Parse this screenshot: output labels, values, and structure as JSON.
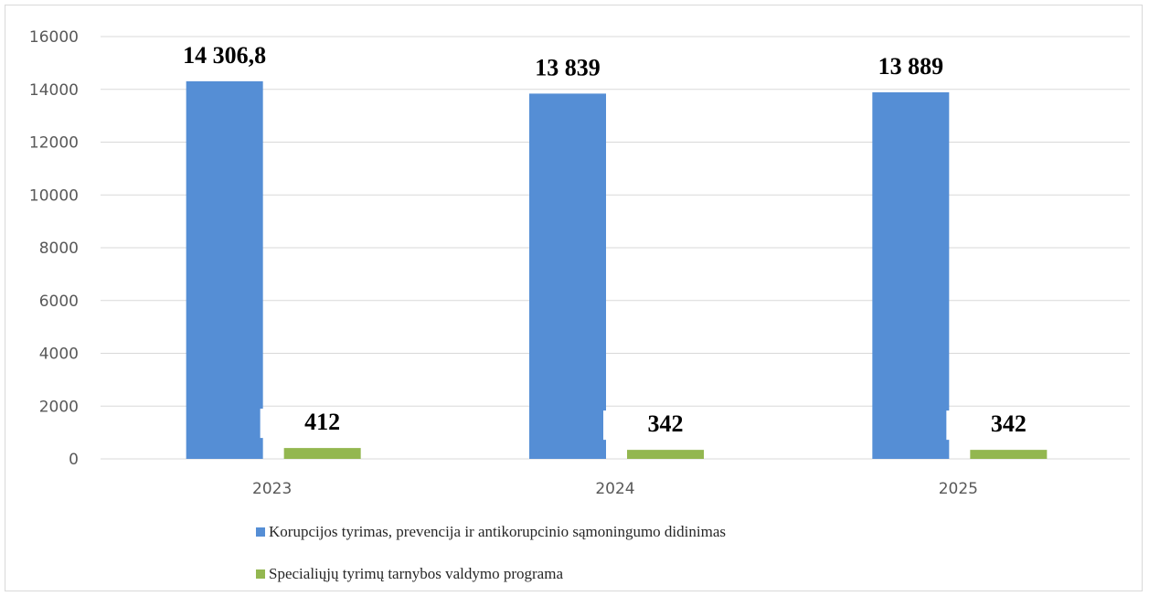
{
  "colors": {
    "series_1": "#558ed5",
    "series_2": "#93b750",
    "gridline": "#d9d9d9",
    "axis_text": "#595959",
    "label_text": "#000000"
  },
  "chart_data": {
    "type": "bar",
    "categories": [
      "2023",
      "2024",
      "2025"
    ],
    "series": [
      {
        "name": "Korupcijos tyrimas, prevencija ir antikorupcinio sąmoningumo didinimas",
        "values": [
          14306.8,
          13839,
          13889
        ],
        "labels": [
          "14 306,8",
          "13 839",
          "13 889"
        ]
      },
      {
        "name": "Specialiųjų tyrimų tarnybos valdymo programa",
        "values": [
          412,
          342,
          342
        ],
        "labels": [
          "412",
          "342",
          "342"
        ]
      }
    ],
    "ylim": [
      0,
      16000
    ],
    "yticks": [
      "0",
      "2000",
      "4000",
      "6000",
      "8000",
      "10000",
      "12000",
      "14000",
      "16000"
    ],
    "grid": true,
    "legend_position": "bottom"
  }
}
